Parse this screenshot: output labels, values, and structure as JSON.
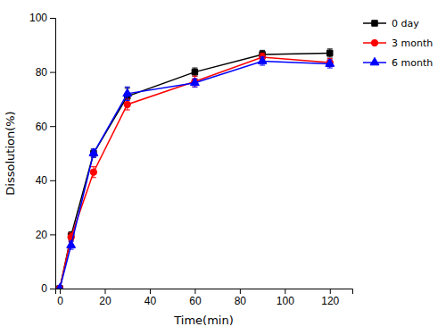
{
  "chart_data": {
    "type": "line",
    "xlabel": "Time(min)",
    "ylabel": "Dissolution(%)",
    "x": [
      0,
      5,
      15,
      30,
      60,
      90,
      120
    ],
    "xlim": [
      -2,
      130
    ],
    "ylim": [
      0,
      100
    ],
    "xticks": [
      0,
      20,
      40,
      60,
      80,
      100,
      120
    ],
    "yticks": [
      0,
      20,
      40,
      60,
      80,
      100
    ],
    "grid": false,
    "legend": "upper right",
    "series": [
      {
        "name": "0 day",
        "color": "#000000",
        "marker": "square",
        "values": [
          0,
          19.5,
          50,
          71,
          80,
          86.5,
          87
        ],
        "yerr": [
          0,
          1.5,
          1.5,
          3.0,
          1.5,
          1.5,
          1.5
        ]
      },
      {
        "name": "3 month",
        "color": "#ff0000",
        "marker": "circle",
        "values": [
          0,
          19,
          43,
          68,
          76.5,
          85.5,
          83.5
        ],
        "yerr": [
          0,
          1.5,
          2.0,
          2.0,
          2.0,
          1.5,
          1.5
        ]
      },
      {
        "name": "6 month",
        "color": "#0000ff",
        "marker": "triangle",
        "values": [
          0,
          16,
          50,
          72,
          76,
          84,
          83
        ],
        "yerr": [
          0,
          1.5,
          1.5,
          2.5,
          1.5,
          1.5,
          1.5
        ]
      }
    ]
  }
}
